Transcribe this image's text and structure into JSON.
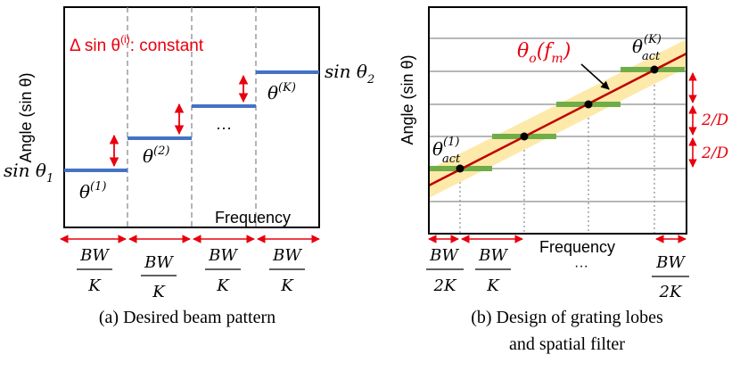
{
  "panel_a": {
    "y_axis_label": "Angle (sin θ)",
    "x_axis_label": "Frequency",
    "title_text": "Δ sin θ",
    "title_sup": "(i)",
    "title_suffix": ": constant",
    "label_sin1": "sin θ",
    "label_sin1_sub": "1",
    "label_sin2": "sin θ",
    "label_sin2_sub": "2",
    "theta_1": "θ",
    "theta_1_sup": "(1)",
    "theta_2": "θ",
    "theta_2_sup": "(2)",
    "theta_k": "θ",
    "theta_k_sup": "(K)",
    "ellipsis": "···",
    "caption": "(a) Desired beam pattern",
    "bottom_fractions": [
      {
        "num": "BW",
        "den": "K"
      },
      {
        "num": "BW",
        "den": "K"
      },
      {
        "num": "BW",
        "den": "K"
      },
      {
        "num": "BW",
        "den": "K"
      }
    ]
  },
  "panel_b": {
    "y_axis_label": "Angle (sin θ)",
    "x_axis_label": "Frequency",
    "curve_label": "θ",
    "curve_label_sub": "o",
    "curve_label_arg": "(f",
    "curve_label_arg_sub": "m",
    "curve_label_close": ")",
    "theta_act1": "θ",
    "theta_act1_sup": "(1)",
    "theta_act1_sub": "act",
    "theta_actk": "θ",
    "theta_actk_sup": "(K)",
    "theta_actk_sub": "act",
    "spacing_1": "2/D",
    "spacing_2": "2/D",
    "ellipsis": "···",
    "caption_line1": "(b) Design of grating lobes",
    "caption_line2": "and spatial filter",
    "bottom_fractions": [
      {
        "num": "BW",
        "den": "2K"
      },
      {
        "num": "BW",
        "den": "K"
      },
      {
        "num": "BW",
        "den": "2K"
      }
    ]
  },
  "colors": {
    "blue": "#4472c4",
    "red": "#e8000d",
    "green": "#70ad47",
    "band": "#fde9a9",
    "grid": "#8c8c8c"
  }
}
